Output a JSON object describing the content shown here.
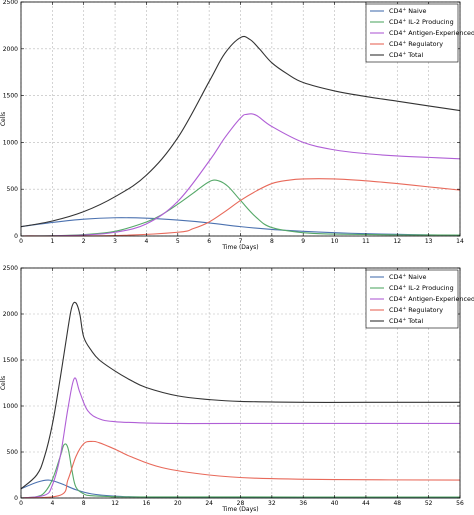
{
  "chart_data": [
    {
      "type": "line",
      "xlabel": "Time (Days)",
      "ylabel": "Cells",
      "xlim": [
        0,
        14
      ],
      "ylim": [
        0,
        2500
      ],
      "xticks": [
        0,
        1,
        2,
        3,
        4,
        5,
        6,
        7,
        8,
        9,
        10,
        11,
        12,
        13,
        14
      ],
      "yticks": [
        0,
        500,
        1000,
        1500,
        2000,
        2500
      ],
      "grid": true,
      "legend_position": "top-right",
      "series": [
        {
          "name": "CD4+ Naive",
          "color": "#4c72b0",
          "x": [
            0,
            1,
            2,
            3,
            4,
            5,
            6,
            7,
            8,
            9,
            10,
            11,
            12,
            13,
            14
          ],
          "y": [
            100,
            145,
            180,
            195,
            190,
            170,
            140,
            100,
            70,
            50,
            35,
            25,
            18,
            12,
            8
          ]
        },
        {
          "name": "CD4+ IL-2 Producing",
          "color": "#55a868",
          "x": [
            0,
            1,
            2,
            3,
            4,
            4.5,
            5,
            5.5,
            6,
            6.3,
            6.6,
            7,
            7.5,
            8,
            9,
            10,
            12,
            14
          ],
          "y": [
            0,
            3,
            15,
            50,
            150,
            230,
            340,
            460,
            580,
            590,
            530,
            380,
            200,
            90,
            35,
            20,
            12,
            10
          ]
        },
        {
          "name": "CD4+ Antigen-Experienced",
          "color": "#b05fd6",
          "x": [
            0,
            1,
            2,
            3,
            4,
            5,
            6,
            6.5,
            7,
            7.2,
            7.5,
            8,
            9,
            10,
            11,
            12,
            13,
            14
          ],
          "y": [
            0,
            2,
            10,
            40,
            130,
            370,
            800,
            1050,
            1260,
            1300,
            1290,
            1170,
            1000,
            920,
            880,
            855,
            840,
            825
          ]
        },
        {
          "name": "CD4+ Regulatory",
          "color": "#e8695a",
          "x": [
            0,
            3,
            5,
            5.5,
            6,
            6.5,
            7,
            7.5,
            8,
            8.5,
            9,
            10,
            11,
            12,
            13,
            14
          ],
          "y": [
            0,
            5,
            40,
            80,
            150,
            260,
            380,
            480,
            560,
            595,
            610,
            610,
            590,
            560,
            525,
            490
          ]
        },
        {
          "name": "CD4+ Total",
          "color": "#333333",
          "x": [
            0,
            1,
            2,
            3,
            4,
            5,
            6,
            6.5,
            7,
            7.3,
            7.6,
            8,
            8.5,
            9,
            10,
            11,
            12,
            13,
            14
          ],
          "y": [
            100,
            160,
            260,
            420,
            650,
            1050,
            1650,
            1950,
            2120,
            2100,
            2000,
            1850,
            1730,
            1640,
            1550,
            1490,
            1440,
            1390,
            1340
          ]
        }
      ]
    },
    {
      "type": "line",
      "xlabel": "Time (Days)",
      "ylabel": "Cells",
      "xlim": [
        0,
        56
      ],
      "ylim": [
        0,
        2500
      ],
      "xticks": [
        0,
        4,
        8,
        12,
        16,
        20,
        24,
        28,
        32,
        36,
        40,
        44,
        48,
        52,
        56
      ],
      "yticks": [
        0,
        500,
        1000,
        1500,
        2000,
        2500
      ],
      "grid": true,
      "legend_position": "top-right",
      "series": [
        {
          "name": "CD4+ Naive",
          "color": "#4c72b0",
          "x": [
            0,
            2,
            3.5,
            5,
            7,
            9,
            12,
            16,
            20,
            56
          ],
          "y": [
            100,
            170,
            195,
            160,
            90,
            45,
            20,
            8,
            4,
            2
          ]
        },
        {
          "name": "CD4+ IL-2 Producing",
          "color": "#55a868",
          "x": [
            0,
            2,
            3,
            4,
            5,
            5.5,
            6,
            6.5,
            7,
            8,
            9,
            12,
            16,
            56
          ],
          "y": [
            0,
            15,
            60,
            200,
            450,
            580,
            540,
            300,
            120,
            45,
            25,
            15,
            12,
            10
          ]
        },
        {
          "name": "CD4+ Antigen-Experienced",
          "color": "#b05fd6",
          "x": [
            0,
            3,
            4,
            5,
            6,
            6.8,
            7.5,
            8.5,
            10,
            12,
            16,
            20,
            28,
            56
          ],
          "y": [
            0,
            30,
            140,
            450,
            980,
            1300,
            1150,
            950,
            860,
            830,
            815,
            810,
            810,
            810
          ]
        },
        {
          "name": "CD4+ Regulatory",
          "color": "#e8695a",
          "x": [
            0,
            5,
            6,
            7,
            8,
            9,
            10,
            12,
            14,
            18,
            24,
            30,
            40,
            56
          ],
          "y": [
            0,
            30,
            200,
            450,
            590,
            615,
            600,
            530,
            450,
            330,
            250,
            215,
            200,
            195
          ]
        },
        {
          "name": "CD4+ Total",
          "color": "#333333",
          "x": [
            0,
            2,
            3,
            4,
            5,
            6,
            6.5,
            7,
            7.5,
            8,
            9,
            10,
            12,
            14,
            16,
            20,
            24,
            28,
            36,
            44,
            56
          ],
          "y": [
            100,
            250,
            450,
            800,
            1300,
            1850,
            2080,
            2120,
            2000,
            1750,
            1600,
            1500,
            1380,
            1280,
            1200,
            1110,
            1070,
            1050,
            1040,
            1040,
            1040
          ]
        }
      ]
    }
  ],
  "legend": {
    "entries": [
      {
        "prefix": "CD4",
        "sup": "+",
        "suffix": "Naive"
      },
      {
        "prefix": "CD4",
        "sup": "+",
        "suffix": "IL-2 Producing"
      },
      {
        "prefix": "CD4",
        "sup": "+",
        "suffix": "Antigen-Experienced"
      },
      {
        "prefix": "CD4",
        "sup": "+",
        "suffix": "Regulatory"
      },
      {
        "prefix": "CD4",
        "sup": "+",
        "suffix": "Total"
      }
    ]
  }
}
